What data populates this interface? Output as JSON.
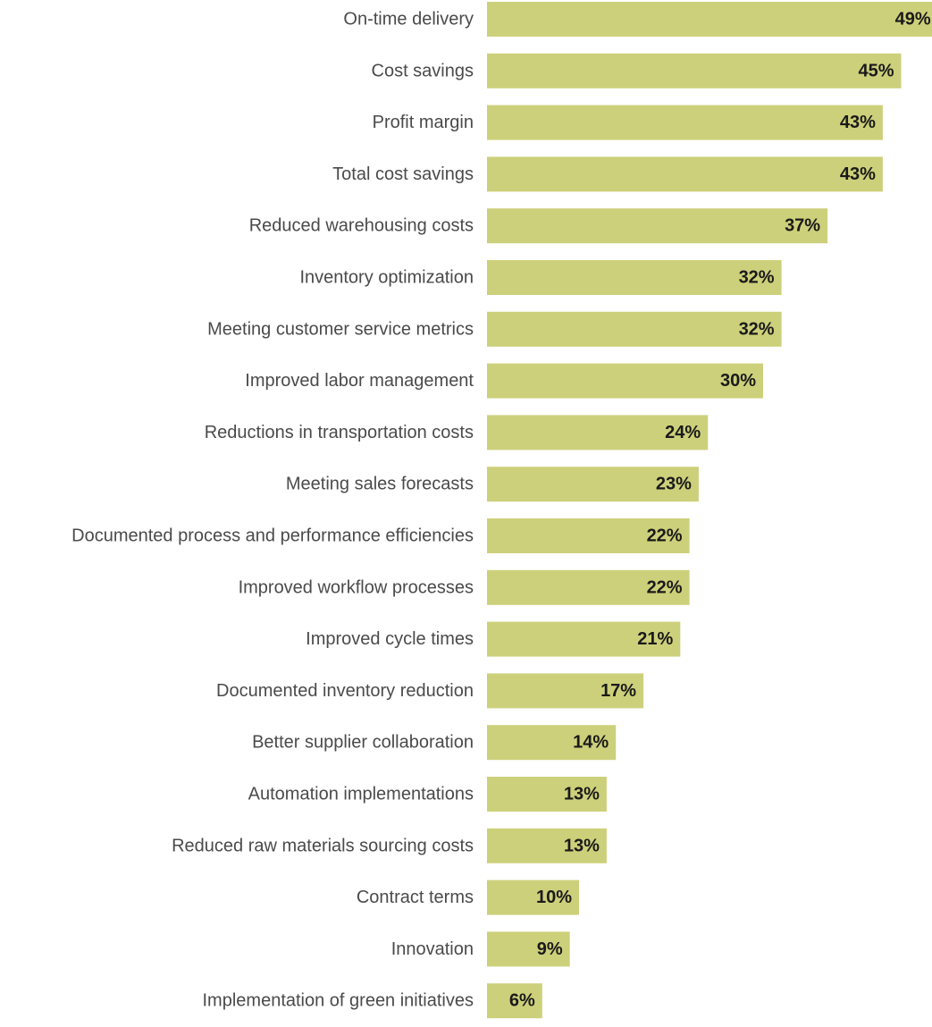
{
  "chart_data": {
    "type": "bar",
    "orientation": "horizontal",
    "bar_color": "#cdd07a",
    "categories": [
      "On-time delivery",
      "Cost savings",
      "Profit margin",
      "Total cost savings",
      "Reduced warehousing costs",
      "Inventory optimization",
      "Meeting customer service metrics",
      "Improved labor management",
      "Reductions in transportation costs",
      "Meeting sales forecasts",
      "Documented process and performance efficiencies",
      "Improved workflow processes",
      "Improved cycle times",
      "Documented inventory reduction",
      "Better supplier collaboration",
      "Automation implementations",
      "Reduced raw materials sourcing costs",
      "Contract terms",
      "Innovation",
      "Implementation of green initiatives"
    ],
    "values": [
      49,
      45,
      43,
      43,
      37,
      32,
      32,
      30,
      24,
      23,
      22,
      22,
      21,
      17,
      14,
      13,
      13,
      10,
      9,
      6
    ],
    "value_labels": [
      "49%",
      "45%",
      "43%",
      "43%",
      "37%",
      "32%",
      "32%",
      "30%",
      "24%",
      "23%",
      "22%",
      "22%",
      "21%",
      "17%",
      "14%",
      "13%",
      "13%",
      "10%",
      "9%",
      "6%"
    ],
    "xlim": [
      0,
      49
    ],
    "grid": false,
    "legend": "none"
  }
}
